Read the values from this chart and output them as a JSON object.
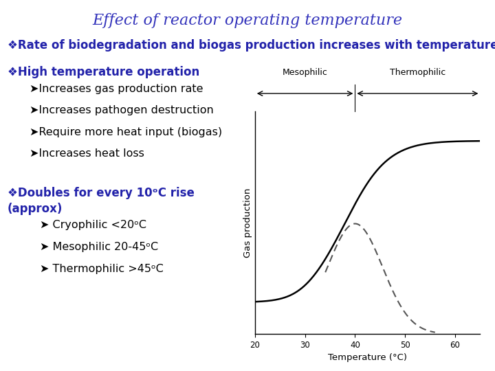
{
  "title": "Effect of reactor operating temperature",
  "title_color": "#3333BB",
  "title_fontsize": 16,
  "bg_color": "#FFFFFF",
  "bullet1": "❖Rate of biodegradation and biogas production increases with temperature",
  "bullet2_header": "❖High temperature operation",
  "bullet2_items": [
    "➤Increases gas production rate",
    "➤Increases pathogen destruction",
    "➤Require more heat input (biogas)",
    "➤Increases heat loss"
  ],
  "bullet3_header": "❖Doubles for every 10ᵒC rise\n(approx)",
  "bullet3_items": [
    "➤ Cryophilic <20ᵒC",
    "➤ Mesophilic 20-45ᵒC",
    "➤ Thermophilic >45ᵒC"
  ],
  "xlabel": "Temperature (°C)",
  "ylabel": "Gas production",
  "x_ticks": [
    20,
    30,
    40,
    50,
    60
  ],
  "xlim": [
    20,
    65
  ],
  "ylim": [
    0,
    1.05
  ],
  "mesophilic_label": "Mesophilic",
  "thermophilic_label": "Thermophilic",
  "curve_color": "#000000",
  "dashed_color": "#555555",
  "text_color": "#000000",
  "text_color_blue": "#2222AA",
  "fontsize_title_bullet": 13,
  "fontsize_bullet": 12,
  "fontsize_sub": 11.5,
  "fontsize_axis": 9.5,
  "fontsize_header_label": 9
}
